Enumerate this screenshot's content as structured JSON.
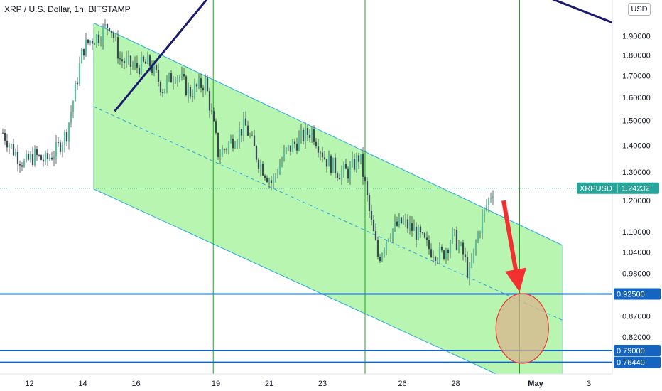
{
  "header": {
    "symbol_title": "XRP / U.S. Dollar, 1h, BITSTAMP",
    "currency": "USD"
  },
  "colors": {
    "channel_fill": "#b7f5b0",
    "channel_line": "#29a8e0",
    "trendline": "#1a1a6e",
    "vline": "#1fa51f",
    "hline": "#1565c0",
    "price_tag": "#26a69a",
    "arrow": "#f23030",
    "ellipse_stroke": "#f23030",
    "ellipse_fill": "#d9b38c",
    "candle": "#263238"
  },
  "chart_data": {
    "type": "candlestick",
    "title": "XRP / U.S. Dollar, 1h, BITSTAMP",
    "x_tick_labels": [
      "12",
      "14",
      "16",
      "19",
      "21",
      "23",
      "26",
      "28",
      "May",
      "3"
    ],
    "y_tick_labels": [
      "1.90000",
      "1.80000",
      "1.70000",
      "1.60000",
      "1.50000",
      "1.40000",
      "1.30000",
      "1.20000",
      "1.10000",
      "1.04000",
      "0.98000",
      "0.87000",
      "0.82000"
    ],
    "y_range": [
      0.74,
      2.1
    ],
    "y_scale": "log",
    "current_price": {
      "label": "XRPUSD",
      "value": "1.24232"
    },
    "horizontal_levels": [
      {
        "value": "0.92500"
      },
      {
        "value": "0.79000"
      },
      {
        "value": "0.76440"
      }
    ],
    "price_path": [
      {
        "x": 0,
        "y": 1.45
      },
      {
        "x": 0.4,
        "y": 1.38
      },
      {
        "x": 0.8,
        "y": 1.33
      },
      {
        "x": 1.2,
        "y": 1.36
      },
      {
        "x": 1.6,
        "y": 1.34
      },
      {
        "x": 2.0,
        "y": 1.38
      },
      {
        "x": 2.4,
        "y": 1.45
      },
      {
        "x": 2.7,
        "y": 1.62
      },
      {
        "x": 3.0,
        "y": 1.83
      },
      {
        "x": 3.3,
        "y": 1.88
      },
      {
        "x": 3.6,
        "y": 1.9
      },
      {
        "x": 4.0,
        "y": 1.97
      },
      {
        "x": 4.4,
        "y": 1.78
      },
      {
        "x": 4.9,
        "y": 1.74
      },
      {
        "x": 5.5,
        "y": 1.76
      },
      {
        "x": 6.0,
        "y": 1.64
      },
      {
        "x": 6.5,
        "y": 1.72
      },
      {
        "x": 7.0,
        "y": 1.62
      },
      {
        "x": 7.6,
        "y": 1.67
      },
      {
        "x": 8.1,
        "y": 1.36
      },
      {
        "x": 8.6,
        "y": 1.42
      },
      {
        "x": 9.1,
        "y": 1.48
      },
      {
        "x": 9.6,
        "y": 1.34
      },
      {
        "x": 10.1,
        "y": 1.26
      },
      {
        "x": 10.6,
        "y": 1.37
      },
      {
        "x": 11.1,
        "y": 1.42
      },
      {
        "x": 11.6,
        "y": 1.46
      },
      {
        "x": 12.1,
        "y": 1.35
      },
      {
        "x": 12.6,
        "y": 1.3
      },
      {
        "x": 13.0,
        "y": 1.3
      },
      {
        "x": 13.4,
        "y": 1.36
      },
      {
        "x": 13.8,
        "y": 1.14
      },
      {
        "x": 14.1,
        "y": 1.02
      },
      {
        "x": 14.5,
        "y": 1.1
      },
      {
        "x": 15.0,
        "y": 1.13
      },
      {
        "x": 15.5,
        "y": 1.1
      },
      {
        "x": 16.0,
        "y": 1.05
      },
      {
        "x": 16.5,
        "y": 1.03
      },
      {
        "x": 16.9,
        "y": 1.09
      },
      {
        "x": 17.3,
        "y": 1.03
      },
      {
        "x": 17.5,
        "y": 0.97
      },
      {
        "x": 17.8,
        "y": 1.08
      },
      {
        "x": 18.1,
        "y": 1.17
      },
      {
        "x": 18.4,
        "y": 1.24
      }
    ],
    "channel": {
      "top": [
        {
          "x": 3.4,
          "y": 1.97
        },
        {
          "x": 21.0,
          "y": 1.06
        }
      ],
      "bottom": [
        {
          "x": 3.4,
          "y": 1.24
        },
        {
          "x": 21.0,
          "y": 0.68
        }
      ],
      "mid": [
        {
          "x": 3.4,
          "y": 1.56
        },
        {
          "x": 21.0,
          "y": 0.86
        }
      ]
    },
    "vertical_lines_x": [
      7.9,
      13.6,
      19.4,
      24.9
    ],
    "trendlines": [
      [
        {
          "x": 4.2,
          "y": 1.54
        },
        {
          "x": 7.9,
          "y": 2.15
        }
      ],
      [
        {
          "x": 20.4,
          "y": 2.12
        },
        {
          "x": 26.0,
          "y": 1.8
        }
      ]
    ],
    "target_ellipse": {
      "cx": 19.5,
      "cy": 0.84
    },
    "arrow": {
      "from": {
        "x": 18.8,
        "y": 1.2
      },
      "to": {
        "x": 19.4,
        "y": 0.93
      }
    }
  }
}
